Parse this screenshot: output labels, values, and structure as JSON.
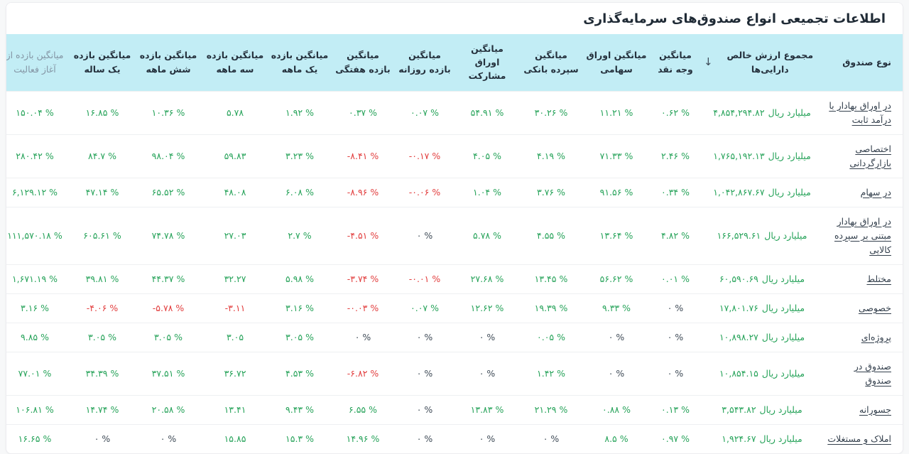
{
  "page": {
    "title": "اطلاعات تجمیعی انواع صندوق‌های سرمایه‌گذاری"
  },
  "colors": {
    "header_bg": "#c2edf5",
    "positive_value": "#27a35a",
    "negative_value": "#e23e3e",
    "zero_value": "#3f4b57",
    "header_text": "#25313d",
    "muted_header_text": "#8495a4"
  },
  "table": {
    "unit_label": "میلیارد ریال",
    "sort_indicator": "↓",
    "columns": [
      {
        "key": "fund_type",
        "label": "نوع صندوق"
      },
      {
        "key": "nav",
        "label": "مجموع ارزش خالص دارایی‌ها",
        "sorted": true
      },
      {
        "key": "cash",
        "label": "میانگین وجه نقد"
      },
      {
        "key": "equity",
        "label": "میانگین اوراق سهامی"
      },
      {
        "key": "deposit",
        "label": "میانگین سپرده بانکی"
      },
      {
        "key": "bonds",
        "label": "میانگین اوراق مشارکت"
      },
      {
        "key": "daily",
        "label": "میانگین بازده روزانه"
      },
      {
        "key": "weekly",
        "label": "میانگین بازده هفتگی"
      },
      {
        "key": "m1",
        "label": "میانگین بازده یک ماهه"
      },
      {
        "key": "m3",
        "label": "میانگین بازده سه ماهه"
      },
      {
        "key": "m6",
        "label": "میانگین بازده شش ماهه"
      },
      {
        "key": "y1",
        "label": "میانگین بازده یک ساله"
      },
      {
        "key": "inception",
        "label": "میانگین بازده از آغاز فعالیت",
        "muted": true
      }
    ],
    "rows": [
      {
        "fund_type": "در اوراق بهادار با درآمد ثابت",
        "nav": "۴,۸۵۴,۲۹۴.۸۲",
        "cash": "۰.۶۲ %",
        "equity": "۱۱.۲۱ %",
        "deposit": "۳۰.۲۶ %",
        "bonds": "۵۴.۹۱ %",
        "daily": "۰.۰۷ %",
        "weekly": "۰.۳۷ %",
        "m1": "۱.۹۲ %",
        "m3": "۵.۷۸",
        "m6": "۱۰.۳۶ %",
        "y1": "۱۶.۸۵ %",
        "inception": "۱۵۰.۰۴ %"
      },
      {
        "fund_type": "اختصاصی بازارگردانی",
        "nav": "۱,۷۶۵,۱۹۲.۱۳",
        "cash": "۲.۴۶ %",
        "equity": "۷۱.۳۳ %",
        "deposit": "۴.۱۹ %",
        "bonds": "۴.۰۵ %",
        "daily": "-۰.۱۷ %",
        "weekly": "-۸.۴۱ %",
        "m1": "۳.۲۳ %",
        "m3": "۵۹.۸۳",
        "m6": "۹۸.۰۴ %",
        "y1": "۸۴.۷ %",
        "inception": "۲۸۰.۴۲ %"
      },
      {
        "fund_type": "در سهام",
        "nav": "۱,۰۴۲,۸۶۷.۶۷",
        "cash": "۰.۳۴ %",
        "equity": "۹۱.۵۶ %",
        "deposit": "۳.۷۶ %",
        "bonds": "۱.۰۴ %",
        "daily": "-۰.۰۶ %",
        "weekly": "-۸.۹۶ %",
        "m1": "۶.۰۸ %",
        "m3": "۴۸.۰۸",
        "m6": "۶۵.۵۲ %",
        "y1": "۴۷.۱۴ %",
        "inception": "۶,۱۲۹.۱۲ %"
      },
      {
        "fund_type": "در اوراق بهادار مبتنی بر سپرده کالایی",
        "nav": "۱۶۶,۵۲۹.۶۱",
        "cash": "۴.۸۲ %",
        "equity": "۱۳.۶۴ %",
        "deposit": "۴.۵۵ %",
        "bonds": "۵.۷۸ %",
        "daily": "۰ %",
        "weekly": "-۴.۵۱ %",
        "m1": "۲.۷ %",
        "m3": "۲۷.۰۳",
        "m6": "۷۴.۷۸ %",
        "y1": "۶۰۵.۶۱ %",
        "inception": "۱۱۱,۵۷۰.۱۸ %"
      },
      {
        "fund_type": "مختلط",
        "nav": "۶۰,۵۹۰.۶۹",
        "cash": "۰.۰۱ %",
        "equity": "۵۶.۶۲ %",
        "deposit": "۱۳.۴۵ %",
        "bonds": "۲۷.۶۸ %",
        "daily": "-۰.۰۱ %",
        "weekly": "-۳.۷۴ %",
        "m1": "۵.۹۸ %",
        "m3": "۳۲.۲۷",
        "m6": "۴۴.۳۷ %",
        "y1": "۳۹.۸۱ %",
        "inception": "۱,۶۷۱.۱۹ %"
      },
      {
        "fund_type": "خصوصی",
        "nav": "۱۷,۸۰۱.۷۶",
        "cash": "۰ %",
        "equity": "۹.۳۳ %",
        "deposit": "۱۹.۳۹ %",
        "bonds": "۱۲.۶۲ %",
        "daily": "۰.۰۷ %",
        "weekly": "-۰.۰۳ %",
        "m1": "۳.۱۶ %",
        "m3": "-۳.۱۱",
        "m6": "-۵.۷۸ %",
        "y1": "-۴.۰۶ %",
        "inception": "۳.۱۶ %"
      },
      {
        "fund_type": "پروژه‌ای",
        "nav": "۱۰,۸۹۸.۲۷",
        "cash": "۰ %",
        "equity": "۰ %",
        "deposit": "۰.۰۵ %",
        "bonds": "۰ %",
        "daily": "۰ %",
        "weekly": "۰ %",
        "m1": "۳.۰۵ %",
        "m3": "۳.۰۵",
        "m6": "۳.۰۵ %",
        "y1": "۳.۰۵ %",
        "inception": "۹.۸۵ %"
      },
      {
        "fund_type": "صندوق در صندوق",
        "nav": "۱۰,۸۵۴.۱۵",
        "cash": "۰ %",
        "equity": "۰ %",
        "deposit": "۱.۴۲ %",
        "bonds": "۰ %",
        "daily": "۰ %",
        "weekly": "-۶.۸۲ %",
        "m1": "۴.۵۳ %",
        "m3": "۳۶.۷۲",
        "m6": "۳۷.۵۱ %",
        "y1": "۳۴.۳۹ %",
        "inception": "۷۷.۰۱ %"
      },
      {
        "fund_type": "جسورانه",
        "nav": "۳,۵۴۳.۸۲",
        "cash": "۰.۱۳ %",
        "equity": "۰.۸۸ %",
        "deposit": "۲۱.۲۹ %",
        "bonds": "۱۳.۸۳ %",
        "daily": "۰ %",
        "weekly": "۶.۵۵ %",
        "m1": "۹.۴۳ %",
        "m3": "۱۳.۴۱",
        "m6": "۲۰.۵۸ %",
        "y1": "۱۴.۷۴ %",
        "inception": "۱۰۶.۸۱ %"
      },
      {
        "fund_type": "املاک و مستغلات",
        "nav": "۱,۹۲۴.۶۷",
        "cash": "۰.۹۷ %",
        "equity": "۸.۵ %",
        "deposit": "۰ %",
        "bonds": "۰ %",
        "daily": "۰ %",
        "weekly": "۱۴.۹۶ %",
        "m1": "۱۵.۳ %",
        "m3": "۱۵.۸۵",
        "m6": "۰ %",
        "y1": "۰ %",
        "inception": "۱۶.۶۵ %"
      }
    ]
  }
}
